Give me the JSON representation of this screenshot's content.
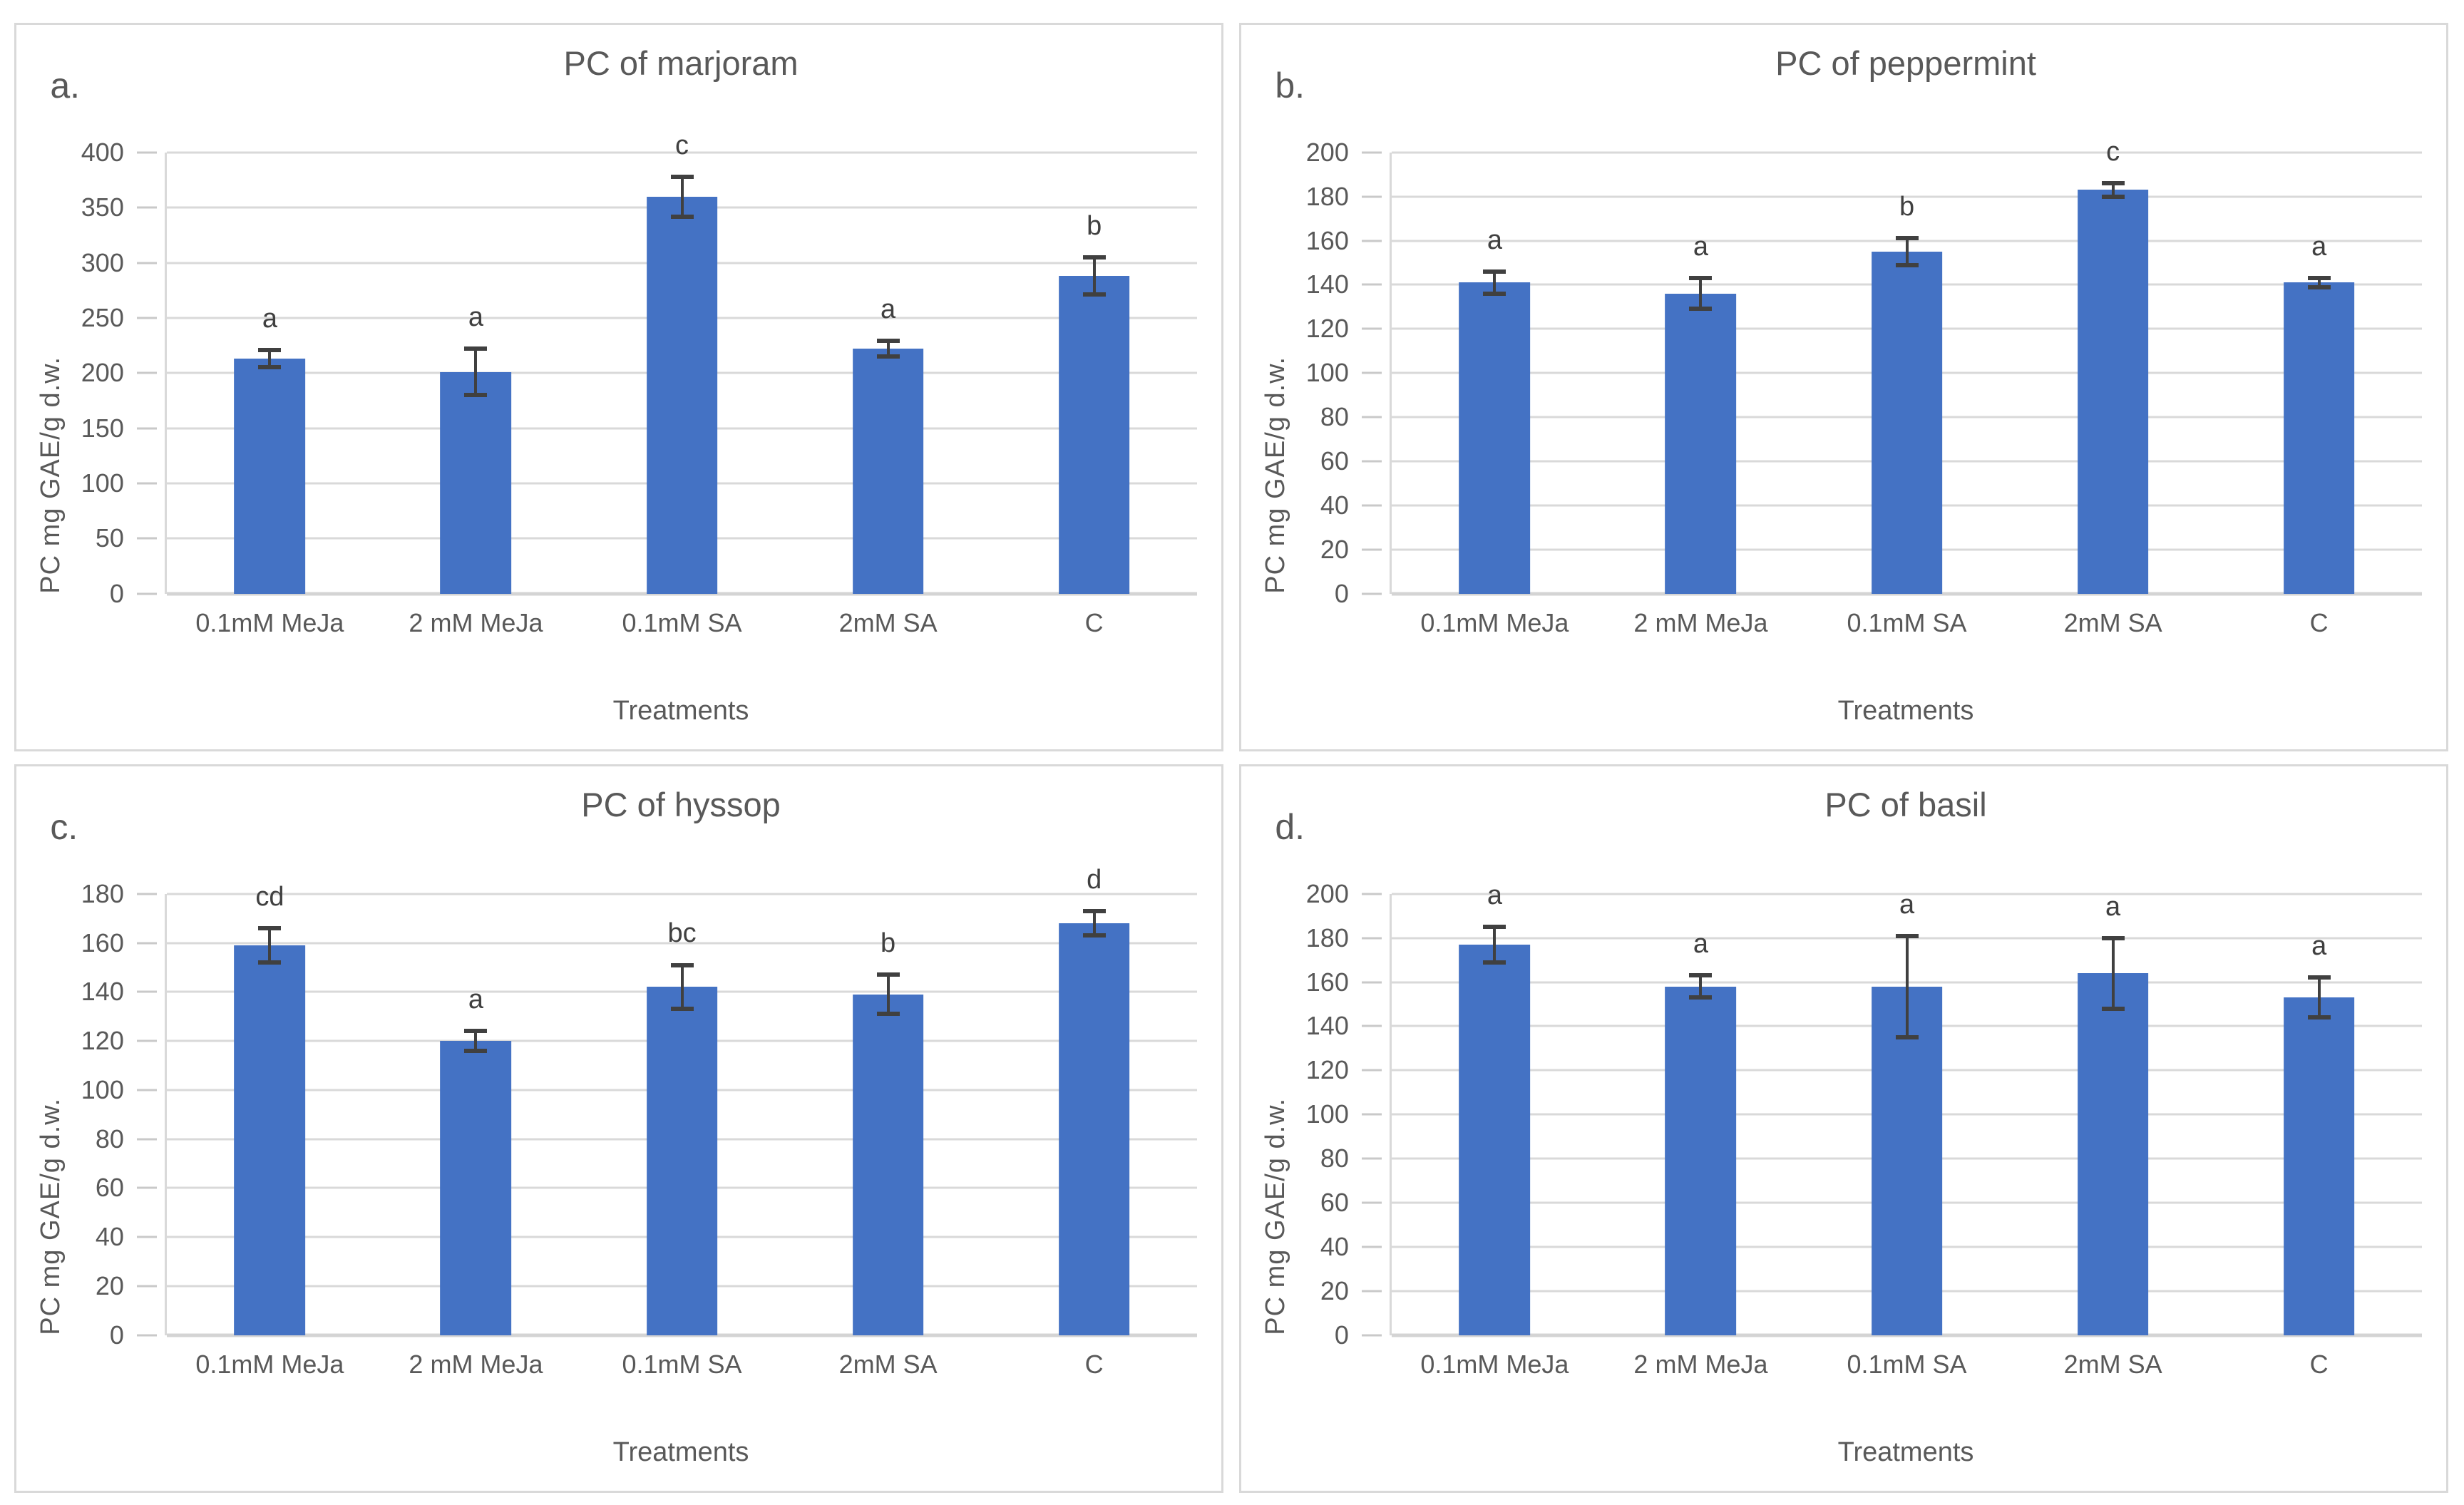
{
  "colors": {
    "bar": "#4472C4",
    "gridline": "#D9D9D9",
    "axis_line": "#D9D9D9",
    "error_bar": "#404040",
    "text": "#595959",
    "panel_border": "#D9D9D9"
  },
  "chart_data": [
    {
      "type": "bar",
      "corner_label": "a.",
      "title": "PC of marjoram",
      "xlabel": "Treatments",
      "ylabel": "PC mg GAE/g d.w.",
      "ylim": [
        0,
        400
      ],
      "ytick_step": 50,
      "grid": true,
      "legend": "none",
      "categories": [
        "0.1mM MeJa",
        "2 mM MeJa",
        "0.1mM SA",
        "2mM SA",
        "C"
      ],
      "values": [
        213,
        201,
        360,
        222,
        288
      ],
      "errors": [
        8,
        21,
        18,
        7,
        17
      ],
      "letters": [
        "a",
        "a",
        "c",
        "a",
        "b"
      ]
    },
    {
      "type": "bar",
      "corner_label": "b.",
      "title": "PC of peppermint",
      "xlabel": "Treatments",
      "ylabel": "PC mg GAE/g d.w.",
      "ylim": [
        0,
        200
      ],
      "ytick_step": 20,
      "grid": true,
      "legend": "none",
      "categories": [
        "0.1mM MeJa",
        "2 mM MeJa",
        "0.1mM SA",
        "2mM SA",
        "C"
      ],
      "values": [
        141,
        136,
        155,
        183,
        141
      ],
      "errors": [
        5,
        7,
        6,
        3,
        2
      ],
      "letters": [
        "a",
        "a",
        "b",
        "c",
        "a"
      ]
    },
    {
      "type": "bar",
      "corner_label": "c.",
      "title": "PC of hyssop",
      "xlabel": "Treatments",
      "ylabel": "PC mg GAE/g d.w.",
      "ylim": [
        0,
        180
      ],
      "ytick_step": 20,
      "grid": true,
      "legend": "none",
      "categories": [
        "0.1mM MeJa",
        "2 mM MeJa",
        "0.1mM SA",
        "2mM SA",
        "C"
      ],
      "values": [
        159,
        120,
        142,
        139,
        168
      ],
      "errors": [
        7,
        4,
        9,
        8,
        5
      ],
      "letters": [
        "cd",
        "a",
        "bc",
        "b",
        "d"
      ]
    },
    {
      "type": "bar",
      "corner_label": "d.",
      "title": "PC of basil",
      "xlabel": "Treatments",
      "ylabel": "PC mg GAE/g d.w.",
      "ylim": [
        0,
        200
      ],
      "ytick_step": 20,
      "grid": true,
      "legend": "none",
      "categories": [
        "0.1mM MeJa",
        "2 mM MeJa",
        "0.1mM SA",
        "2mM SA",
        "C"
      ],
      "values": [
        177,
        158,
        158,
        164,
        153
      ],
      "errors": [
        8,
        5,
        23,
        16,
        9
      ],
      "letters": [
        "a",
        "a",
        "a",
        "a",
        "a"
      ]
    }
  ]
}
